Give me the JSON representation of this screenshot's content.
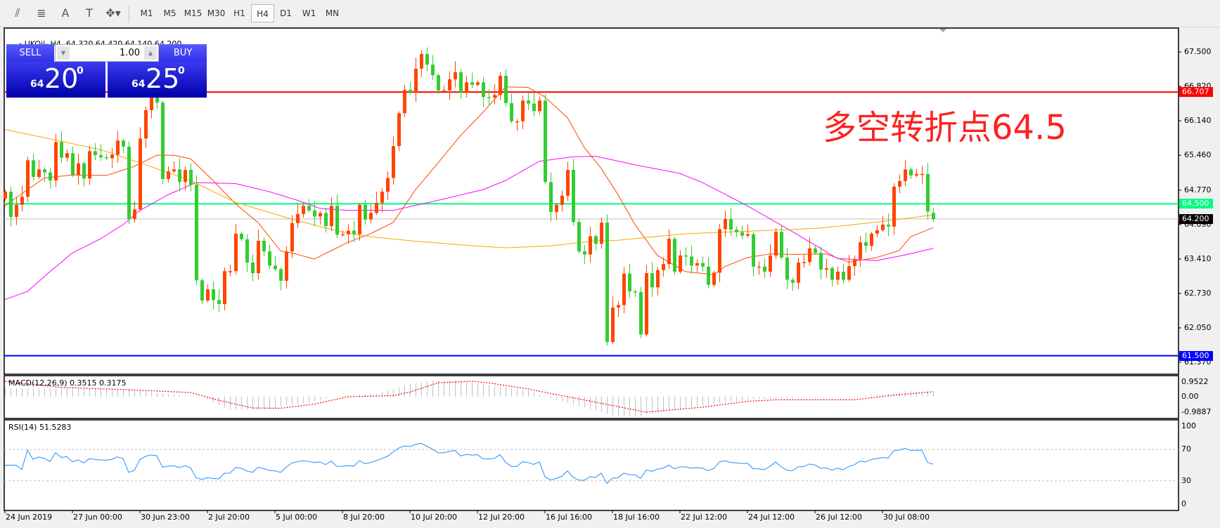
{
  "toolbar": {
    "tools": [
      {
        "icon": "elliott-wave-icon",
        "glyph": "⫽"
      },
      {
        "icon": "fibonacci-icon",
        "glyph": "≣"
      },
      {
        "icon": "text-icon",
        "glyph": "A"
      },
      {
        "icon": "text-label-icon",
        "glyph": "T"
      },
      {
        "icon": "arrows-dropdown-icon",
        "glyph": "✥▾"
      }
    ],
    "timeframes": [
      "M1",
      "M5",
      "M15",
      "M30",
      "H1",
      "H4",
      "D1",
      "W1",
      "MN"
    ],
    "active_timeframe": "H4"
  },
  "chart": {
    "symbol": "UKOil-,H4",
    "ohlc": "64.320 64.420 64.140 64.200",
    "colors": {
      "up": "#ff4500",
      "down": "#32cd32",
      "background": "#ffffff"
    }
  },
  "trade_panel": {
    "sell_label": "SELL",
    "buy_label": "BUY",
    "volume": "1.00",
    "sell_price": {
      "small": "64",
      "big": "20",
      "sup": "0"
    },
    "buy_price": {
      "small": "64",
      "big": "25",
      "sup": "0"
    }
  },
  "annotation": "多空转折点64.5",
  "price_axis": {
    "ticks": [
      "67.500",
      "66.820",
      "66.140",
      "65.460",
      "64.770",
      "64.090",
      "63.410",
      "62.730",
      "62.050",
      "61.370"
    ],
    "markers": [
      {
        "value": "66.707",
        "color": "#ff0000"
      },
      {
        "value": "64.500",
        "color": "#00ff7f"
      },
      {
        "value": "64.200",
        "color": "#000000"
      },
      {
        "value": "61.500",
        "color": "#0000ff"
      }
    ]
  },
  "macd": {
    "label": "MACD(12,26,9) 0.3515 0.3175",
    "axis": [
      "0.9522",
      "0.00",
      "-0.9887"
    ]
  },
  "rsi": {
    "label": "RSI(14) 51.5283",
    "axis": [
      "100",
      "70",
      "30",
      "0"
    ],
    "levels": [
      70,
      30
    ]
  },
  "time_axis": [
    "24 Jun 2019",
    "27 Jun 00:00",
    "30 Jun 23:00",
    "2 Jul 20:00",
    "5 Jul 00:00",
    "8 Jul 20:00",
    "10 Jul 20:00",
    "12 Jul 20:00",
    "16 Jul 16:00",
    "18 Jul 16:00",
    "22 Jul 12:00",
    "24 Jul 12:00",
    "26 Jul 12:00",
    "30 Jul 08:00"
  ],
  "chart_data": {
    "type": "candlestick",
    "ylim": [
      61.37,
      67.5
    ],
    "last_bar": {
      "open": 64.32,
      "high": 64.42,
      "low": 64.14,
      "close": 64.2
    },
    "close": [
      64.74,
      64.24,
      64.48,
      64.64,
      65.36,
      65.03,
      65.18,
      65.12,
      64.96,
      65.72,
      65.41,
      65.5,
      65.07,
      65.3,
      65.0,
      65.54,
      65.46,
      65.42,
      65.4,
      65.47,
      65.75,
      65.63,
      64.2,
      64.39,
      65.79,
      66.35,
      66.6,
      66.5,
      64.99,
      65.14,
      65.18,
      64.93,
      65.17,
      64.88,
      62.99,
      62.59,
      62.81,
      62.6,
      62.52,
      63.17,
      63.17,
      63.91,
      63.8,
      63.34,
      63.13,
      63.77,
      63.56,
      63.28,
      63.21,
      62.98,
      63.56,
      64.12,
      64.3,
      64.46,
      64.37,
      64.25,
      64.32,
      64.06,
      64.46,
      63.89,
      63.9,
      63.97,
      63.9,
      64.48,
      64.19,
      64.32,
      64.52,
      64.74,
      65.01,
      65.64,
      66.29,
      66.75,
      66.7,
      67.17,
      67.46,
      67.25,
      67.04,
      66.74,
      66.74,
      66.96,
      67.1,
      66.7,
      66.9,
      66.85,
      66.9,
      66.61,
      66.6,
      66.65,
      67.03,
      66.49,
      66.13,
      66.13,
      66.54,
      66.48,
      66.33,
      66.54,
      64.93,
      64.34,
      64.48,
      64.66,
      65.17,
      64.14,
      63.56,
      63.5,
      63.86,
      63.71,
      64.13,
      61.77,
      62.45,
      62.5,
      63.12,
      62.77,
      62.76,
      61.92,
      63.13,
      62.85,
      63.19,
      63.31,
      63.81,
      63.16,
      63.48,
      63.46,
      63.28,
      63.33,
      63.26,
      62.9,
      63.14,
      64.0,
      64.2,
      63.99,
      63.94,
      63.87,
      63.9,
      63.26,
      63.26,
      63.16,
      63.48,
      63.95,
      63.44,
      63.0,
      62.94,
      63.34,
      63.35,
      63.62,
      63.53,
      63.2,
      63.23,
      63.0,
      63.16,
      63.0,
      63.27,
      63.41,
      63.74,
      63.67,
      63.91,
      63.98,
      64.09,
      64.05,
      64.84,
      64.95,
      65.18,
      65.06,
      65.09,
      65.09,
      64.35,
      64.2
    ],
    "horizontal_lines": [
      {
        "value": 66.707,
        "color": "#ff0000"
      },
      {
        "value": 64.5,
        "color": "#00ff7f"
      },
      {
        "value": 64.2,
        "color": "#c0c0c0"
      },
      {
        "value": 61.5,
        "color": "#0000ff"
      }
    ],
    "moving_averages": [
      {
        "color": "#ff4500",
        "points": [
          [
            0,
            64.46
          ],
          [
            4,
            64.78
          ],
          [
            7,
            65.01
          ],
          [
            12,
            65.07
          ],
          [
            18,
            65.06
          ],
          [
            23,
            65.24
          ],
          [
            27,
            65.46
          ],
          [
            30,
            65.46
          ],
          [
            33,
            65.39
          ],
          [
            37,
            64.96
          ],
          [
            41,
            64.5
          ],
          [
            45,
            64.13
          ],
          [
            49,
            63.57
          ],
          [
            51,
            63.53
          ],
          [
            55,
            63.41
          ],
          [
            61,
            63.74
          ],
          [
            65,
            63.91
          ],
          [
            69,
            64.13
          ],
          [
            73,
            64.78
          ],
          [
            77,
            65.31
          ],
          [
            81,
            65.85
          ],
          [
            85,
            66.31
          ],
          [
            89,
            66.81
          ],
          [
            93,
            66.8
          ],
          [
            96,
            66.61
          ],
          [
            100,
            66.2
          ],
          [
            103,
            65.61
          ],
          [
            106,
            65.2
          ],
          [
            109,
            64.68
          ],
          [
            112,
            64.09
          ],
          [
            115,
            63.63
          ],
          [
            116,
            63.48
          ],
          [
            121,
            63.16
          ],
          [
            126,
            63.1
          ],
          [
            128,
            63.26
          ],
          [
            132,
            63.44
          ],
          [
            136,
            63.51
          ],
          [
            140,
            63.5
          ],
          [
            146,
            63.51
          ],
          [
            150,
            63.35
          ],
          [
            155,
            63.44
          ],
          [
            157,
            63.51
          ],
          [
            159,
            63.58
          ],
          [
            161,
            63.85
          ],
          [
            165,
            64.03
          ]
        ]
      },
      {
        "color": "#ff00ff",
        "points": [
          [
            0,
            62.61
          ],
          [
            4,
            62.77
          ],
          [
            8,
            63.16
          ],
          [
            12,
            63.53
          ],
          [
            17,
            63.81
          ],
          [
            21,
            64.09
          ],
          [
            24,
            64.37
          ],
          [
            29,
            64.68
          ],
          [
            34,
            64.92
          ],
          [
            41,
            64.9
          ],
          [
            47,
            64.74
          ],
          [
            52,
            64.57
          ],
          [
            56,
            64.41
          ],
          [
            61,
            64.37
          ],
          [
            69,
            64.37
          ],
          [
            77,
            64.57
          ],
          [
            85,
            64.78
          ],
          [
            89,
            64.96
          ],
          [
            95,
            65.34
          ],
          [
            101,
            65.43
          ],
          [
            105,
            65.44
          ],
          [
            112,
            65.27
          ],
          [
            120,
            65.1
          ],
          [
            124,
            64.92
          ],
          [
            132,
            64.46
          ],
          [
            140,
            63.95
          ],
          [
            148,
            63.42
          ],
          [
            155,
            63.38
          ],
          [
            160,
            63.49
          ],
          [
            165,
            63.62
          ]
        ]
      },
      {
        "color": "#ffa500",
        "points": [
          [
            0,
            65.97
          ],
          [
            17,
            65.57
          ],
          [
            24,
            65.31
          ],
          [
            33,
            64.96
          ],
          [
            41,
            64.53
          ],
          [
            50,
            64.23
          ],
          [
            56,
            64.05
          ],
          [
            61,
            63.92
          ],
          [
            65,
            63.85
          ],
          [
            73,
            63.76
          ],
          [
            81,
            63.69
          ],
          [
            89,
            63.63
          ],
          [
            97,
            63.67
          ],
          [
            105,
            63.77
          ],
          [
            109,
            63.78
          ],
          [
            121,
            63.91
          ],
          [
            137,
            63.98
          ],
          [
            145,
            64.02
          ],
          [
            155,
            64.14
          ],
          [
            165,
            64.28
          ]
        ]
      }
    ],
    "macd_histogram": [
      [
        0,
        0.55
      ],
      [
        22,
        0.5
      ],
      [
        28,
        0.2
      ],
      [
        35,
        0
      ],
      [
        38,
        -0.55
      ],
      [
        40,
        -0.86
      ],
      [
        47,
        -0.8
      ],
      [
        55,
        -0.3
      ],
      [
        58,
        0
      ],
      [
        66,
        0.2
      ],
      [
        72,
        0.8
      ],
      [
        76,
        1.05
      ],
      [
        80,
        1.05
      ],
      [
        86,
        0.75
      ],
      [
        93,
        0.4
      ],
      [
        97,
        -0.1
      ],
      [
        103,
        -0.7
      ],
      [
        108,
        -1.2
      ],
      [
        112,
        -1.3
      ],
      [
        118,
        -0.9
      ],
      [
        125,
        -0.5
      ],
      [
        132,
        -0.2
      ],
      [
        140,
        -0.05
      ],
      [
        148,
        0
      ],
      [
        155,
        0.1
      ],
      [
        160,
        0.35
      ],
      [
        165,
        0.35
      ]
    ],
    "macd_signal": [
      [
        0,
        1.0
      ],
      [
        10,
        0.6
      ],
      [
        22,
        0.45
      ],
      [
        33,
        0.27
      ],
      [
        38,
        -0.23
      ],
      [
        44,
        -0.73
      ],
      [
        49,
        -0.75
      ],
      [
        55,
        -0.48
      ],
      [
        61,
        0
      ],
      [
        69,
        0.07
      ],
      [
        72,
        0.3
      ],
      [
        77,
        0.9
      ],
      [
        83,
        1.0
      ],
      [
        86,
        0.9
      ],
      [
        93,
        0.5
      ],
      [
        100,
        0
      ],
      [
        107,
        -0.5
      ],
      [
        114,
        -1.0
      ],
      [
        124,
        -0.68
      ],
      [
        132,
        -0.3
      ],
      [
        137,
        -0.2
      ],
      [
        151,
        -0.2
      ],
      [
        158,
        0.1
      ],
      [
        165,
        0.32
      ]
    ]
  }
}
